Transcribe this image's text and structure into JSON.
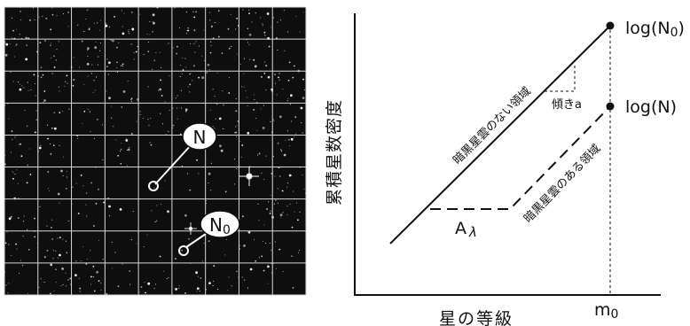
{
  "star_field": {
    "grid_rows": 9,
    "grid_cols": 9,
    "labels": {
      "n": "N",
      "n0_main": "N",
      "n0_sub": "0"
    }
  },
  "plot": {
    "y_axis_label": "累積星数密度",
    "x_axis_label": "星の等級",
    "x_tick_main": "m",
    "x_tick_sub": "0",
    "label_log_n0_pre": "log(N",
    "label_log_n0_sub": "0",
    "label_log_n0_post": ")",
    "label_log_n": "log(N)",
    "label_no_cloud": "暗黒星雲のない領域",
    "label_with_cloud": "暗黒星雲のある領域",
    "label_slope": "傾きa",
    "label_a_main": "A",
    "label_a_sub": "λ"
  },
  "colors": {
    "sky": "#0e0e0e",
    "grid": "#d8d8d8",
    "ink": "#111111"
  }
}
